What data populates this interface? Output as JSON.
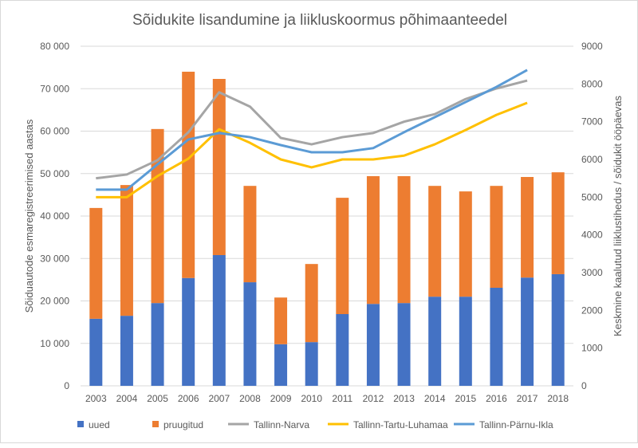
{
  "chart_data": {
    "type": "bar",
    "title": "Sõidukite lisandumine ja liikluskoormus põhimaanteedel",
    "ylabel": "Sõiduautode esmaregistreerimised aastas",
    "y2label": "Keskmine kaalutud liiklustihedus / sõidukit ööpäevas",
    "ylim": [
      0,
      80000
    ],
    "y2lim": [
      0,
      9000
    ],
    "yticks": [
      "0",
      "10 000",
      "20 000",
      "30 000",
      "40 000",
      "50 000",
      "60 000",
      "70 000",
      "80 000"
    ],
    "y2ticks": [
      "0",
      "1000",
      "2000",
      "3000",
      "4000",
      "5000",
      "6000",
      "7000",
      "8000",
      "9000"
    ],
    "grid": true,
    "legend": "bottom",
    "categories": [
      "2003",
      "2004",
      "2005",
      "2006",
      "2007",
      "2008",
      "2009",
      "2010",
      "2011",
      "2012",
      "2013",
      "2014",
      "2015",
      "2016",
      "2017",
      "2018"
    ],
    "bar_series": [
      {
        "name": "uued",
        "color": "#4472c4",
        "values": [
          15800,
          16500,
          19500,
          25400,
          30800,
          24400,
          9800,
          10300,
          16900,
          19300,
          19500,
          21000,
          21000,
          23100,
          25500,
          26300
        ]
      },
      {
        "name": "pruugitud",
        "color": "#ed7d31",
        "values": [
          26100,
          30800,
          41000,
          48600,
          41500,
          22700,
          11000,
          18400,
          27400,
          30100,
          29900,
          26100,
          24800,
          24000,
          23700,
          24000
        ]
      }
    ],
    "line_series": [
      {
        "name": "Tallinn-Narva",
        "color": "#a5a5a5",
        "axis": "right",
        "values": [
          5500,
          5600,
          5980,
          6720,
          7780,
          7400,
          6570,
          6400,
          6590,
          6700,
          7000,
          7200,
          7600,
          7880,
          8090,
          null
        ]
      },
      {
        "name": "Tallinn-Tartu-Luhamaa",
        "color": "#ffc000",
        "axis": "right",
        "values": [
          5000,
          5000,
          5560,
          6020,
          6800,
          6440,
          6000,
          5790,
          6000,
          6000,
          6100,
          6400,
          6780,
          7180,
          7500,
          null
        ]
      },
      {
        "name": "Tallinn-Pärnu-Ikla",
        "color": "#5b9bd5",
        "axis": "right",
        "values": [
          5200,
          5200,
          5870,
          6530,
          6700,
          6590,
          6380,
          6190,
          6190,
          6300,
          6720,
          7120,
          7520,
          7920,
          8370,
          null
        ]
      }
    ]
  }
}
